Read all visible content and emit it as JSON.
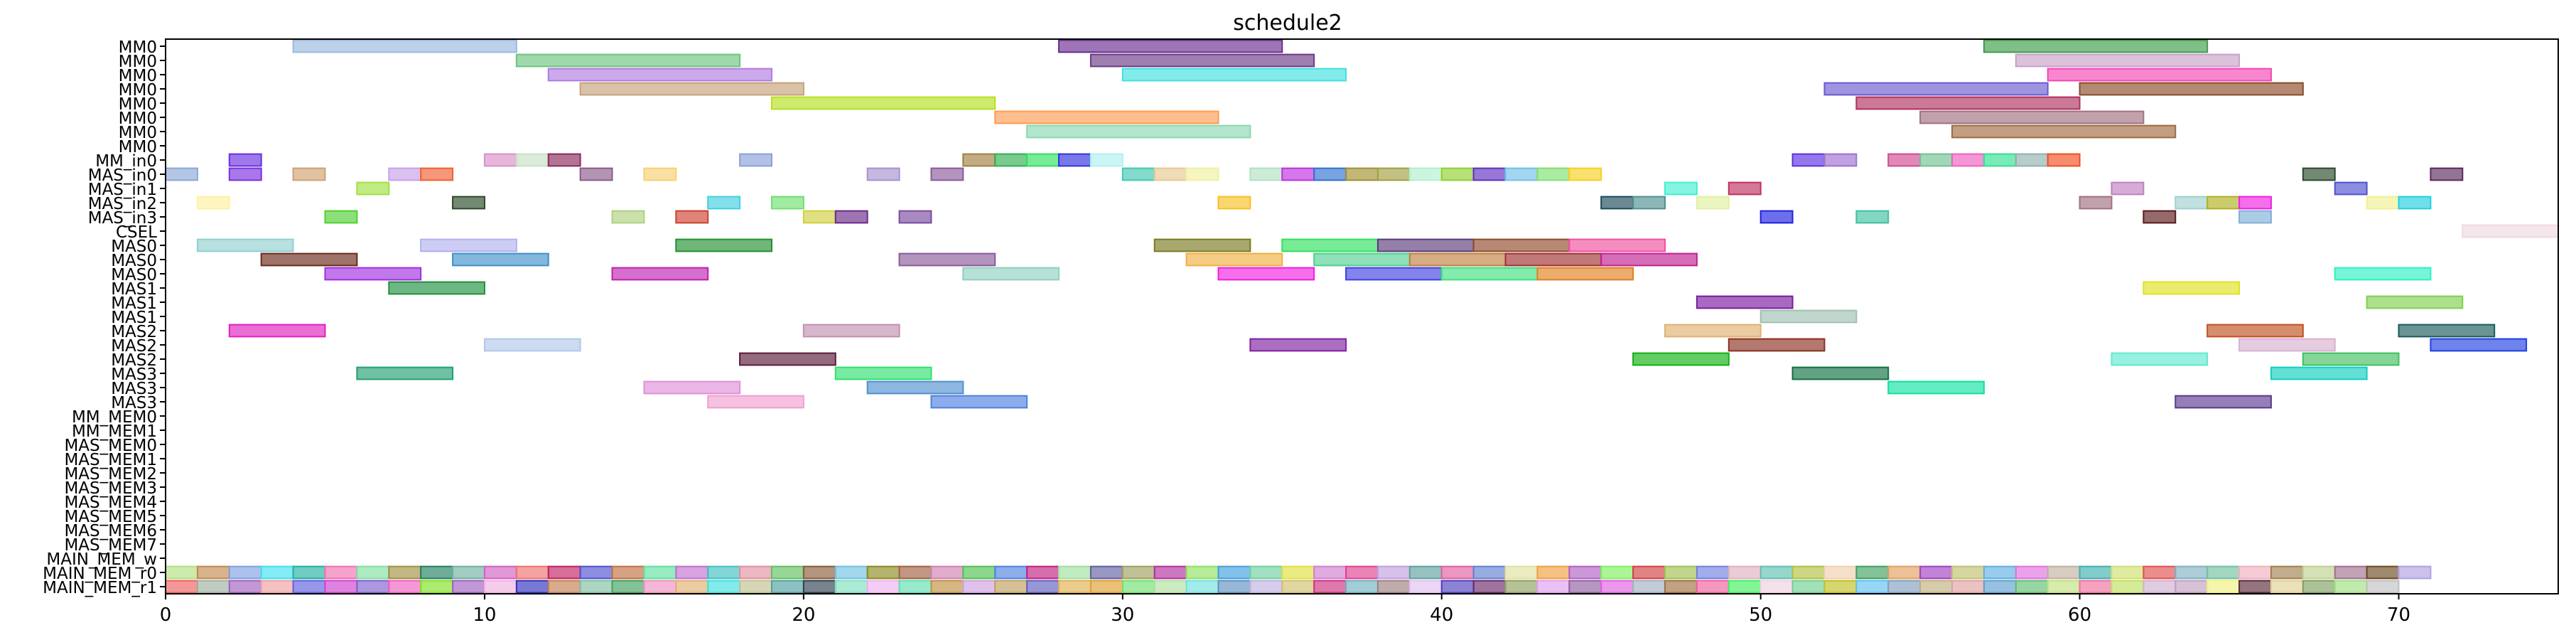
{
  "chart_data": {
    "type": "gantt",
    "title": "schedule2",
    "xlabel": "",
    "ylabel": "",
    "xlim": [
      0,
      75
    ],
    "x_ticks": [
      0,
      10,
      20,
      30,
      40,
      50,
      60,
      70
    ],
    "grid": false,
    "rows": [
      "MM0",
      "MM0",
      "MM0",
      "MM0",
      "MM0",
      "MM0",
      "MM0",
      "MM0",
      "MM_in0",
      "MAS_in0",
      "MAS_in1",
      "MAS_in2",
      "MAS_in3",
      "CSEL",
      "MAS0",
      "MAS0",
      "MAS0",
      "MAS1",
      "MAS1",
      "MAS1",
      "MAS2",
      "MAS2",
      "MAS2",
      "MAS3",
      "MAS3",
      "MAS3",
      "MM_MEM0",
      "MM_MEM1",
      "MAS_MEM0",
      "MAS_MEM1",
      "MAS_MEM2",
      "MAS_MEM3",
      "MAS_MEM4",
      "MAS_MEM5",
      "MAS_MEM6",
      "MAS_MEM7",
      "MAIN_MEM_w",
      "MAIN_MEM_r0",
      "MAIN_MEM_r1"
    ],
    "tasks": [
      {
        "row": 0,
        "start": 4,
        "end": 11,
        "color": "#9ab9e0"
      },
      {
        "row": 0,
        "start": 28,
        "end": 35,
        "color": "#6a2c91"
      },
      {
        "row": 0,
        "start": 57,
        "end": 64,
        "color": "#3e9c4a"
      },
      {
        "row": 1,
        "start": 11,
        "end": 18,
        "color": "#6cc47e"
      },
      {
        "row": 1,
        "start": 29,
        "end": 36,
        "color": "#6b3a85"
      },
      {
        "row": 1,
        "start": 58,
        "end": 65,
        "color": "#c9a0c8"
      },
      {
        "row": 2,
        "start": 12,
        "end": 19,
        "color": "#b07be0"
      },
      {
        "row": 2,
        "start": 30,
        "end": 37,
        "color": "#40e0e0"
      },
      {
        "row": 2,
        "start": 59,
        "end": 66,
        "color": "#f545b5"
      },
      {
        "row": 3,
        "start": 13,
        "end": 20,
        "color": "#c4a27a"
      },
      {
        "row": 3,
        "start": 52,
        "end": 59,
        "color": "#6a5ad0"
      },
      {
        "row": 3,
        "start": 60,
        "end": 67,
        "color": "#8b4a2a"
      },
      {
        "row": 4,
        "start": 19,
        "end": 26,
        "color": "#b6e020"
      },
      {
        "row": 4,
        "start": 53,
        "end": 60,
        "color": "#b03060"
      },
      {
        "row": 5,
        "start": 26,
        "end": 33,
        "color": "#ff9b50"
      },
      {
        "row": 5,
        "start": 55,
        "end": 62,
        "color": "#a07080"
      },
      {
        "row": 6,
        "start": 27,
        "end": 34,
        "color": "#8ad8b0"
      },
      {
        "row": 6,
        "start": 56,
        "end": 63,
        "color": "#a06a40"
      },
      {
        "row": 8,
        "start": 2,
        "end": 3,
        "color": "#6a30e0"
      },
      {
        "row": 8,
        "start": 10,
        "end": 11,
        "color": "#d890c8"
      },
      {
        "row": 8,
        "start": 11,
        "end": 12,
        "color": "#c8e0c8"
      },
      {
        "row": 8,
        "start": 12,
        "end": 13,
        "color": "#8a2a5a"
      },
      {
        "row": 8,
        "start": 18,
        "end": 19,
        "color": "#8aa0d8"
      },
      {
        "row": 8,
        "start": 25,
        "end": 26,
        "color": "#a08040"
      },
      {
        "row": 8,
        "start": 26,
        "end": 27,
        "color": "#30b050"
      },
      {
        "row": 8,
        "start": 27,
        "end": 28,
        "color": "#30e060"
      },
      {
        "row": 8,
        "start": 28,
        "end": 29,
        "color": "#3030e0"
      },
      {
        "row": 8,
        "start": 29,
        "end": 30,
        "color": "#b0f0f0"
      },
      {
        "row": 8,
        "start": 51,
        "end": 52,
        "color": "#5a30e0"
      },
      {
        "row": 8,
        "start": 52,
        "end": 53,
        "color": "#a070d0"
      },
      {
        "row": 8,
        "start": 54,
        "end": 55,
        "color": "#d04a90"
      },
      {
        "row": 8,
        "start": 55,
        "end": 56,
        "color": "#70c090"
      },
      {
        "row": 8,
        "start": 56,
        "end": 57,
        "color": "#f060c0"
      },
      {
        "row": 8,
        "start": 57,
        "end": 58,
        "color": "#30e090"
      },
      {
        "row": 8,
        "start": 58,
        "end": 59,
        "color": "#90b0b0"
      },
      {
        "row": 8,
        "start": 59,
        "end": 60,
        "color": "#f05020"
      },
      {
        "row": 9,
        "start": 0,
        "end": 1,
        "color": "#8aa8d8"
      },
      {
        "row": 9,
        "start": 2,
        "end": 3,
        "color": "#7a30e0"
      },
      {
        "row": 9,
        "start": 4,
        "end": 5,
        "color": "#d0a070"
      },
      {
        "row": 9,
        "start": 7,
        "end": 8,
        "color": "#c8a0e8"
      },
      {
        "row": 9,
        "start": 8,
        "end": 9,
        "color": "#f06030"
      },
      {
        "row": 9,
        "start": 13,
        "end": 14,
        "color": "#8a5a8a"
      },
      {
        "row": 9,
        "start": 15,
        "end": 16,
        "color": "#f8d070"
      },
      {
        "row": 9,
        "start": 22,
        "end": 23,
        "color": "#a890d0"
      },
      {
        "row": 9,
        "start": 24,
        "end": 25,
        "color": "#8a5a9a"
      },
      {
        "row": 9,
        "start": 30,
        "end": 31,
        "color": "#40c8b0"
      },
      {
        "row": 9,
        "start": 31,
        "end": 32,
        "color": "#e8c890"
      },
      {
        "row": 9,
        "start": 32,
        "end": 33,
        "color": "#f0f0a0"
      },
      {
        "row": 9,
        "start": 34,
        "end": 35,
        "color": "#b0e0c0"
      },
      {
        "row": 9,
        "start": 35,
        "end": 36,
        "color": "#c030e0"
      },
      {
        "row": 9,
        "start": 36,
        "end": 37,
        "color": "#3070d0"
      },
      {
        "row": 9,
        "start": 37,
        "end": 38,
        "color": "#a09030"
      },
      {
        "row": 9,
        "start": 38,
        "end": 39,
        "color": "#a0a040"
      },
      {
        "row": 9,
        "start": 39,
        "end": 40,
        "color": "#b0f0d0"
      },
      {
        "row": 9,
        "start": 40,
        "end": 41,
        "color": "#90d030"
      },
      {
        "row": 9,
        "start": 41,
        "end": 42,
        "color": "#6030c0"
      },
      {
        "row": 9,
        "start": 42,
        "end": 43,
        "color": "#70c0e8"
      },
      {
        "row": 9,
        "start": 43,
        "end": 44,
        "color": "#80e070"
      },
      {
        "row": 9,
        "start": 44,
        "end": 45,
        "color": "#f8d020"
      },
      {
        "row": 9,
        "start": 67,
        "end": 68,
        "color": "#2a4a2a"
      },
      {
        "row": 9,
        "start": 71,
        "end": 72,
        "color": "#5a2a5a"
      },
      {
        "row": 10,
        "start": 6,
        "end": 7,
        "color": "#a0e040"
      },
      {
        "row": 10,
        "start": 47,
        "end": 48,
        "color": "#40f0d0"
      },
      {
        "row": 10,
        "start": 49,
        "end": 50,
        "color": "#c03060"
      },
      {
        "row": 10,
        "start": 61,
        "end": 62,
        "color": "#c080c0"
      },
      {
        "row": 10,
        "start": 68,
        "end": 69,
        "color": "#5050d0"
      },
      {
        "row": 11,
        "start": 1,
        "end": 2,
        "color": "#fff0a0"
      },
      {
        "row": 11,
        "start": 9,
        "end": 10,
        "color": "#2a4a2a"
      },
      {
        "row": 11,
        "start": 17,
        "end": 18,
        "color": "#40d0e0"
      },
      {
        "row": 11,
        "start": 19,
        "end": 20,
        "color": "#70e070"
      },
      {
        "row": 11,
        "start": 33,
        "end": 34,
        "color": "#f8c020"
      },
      {
        "row": 11,
        "start": 45,
        "end": 46,
        "color": "#1a4a5a"
      },
      {
        "row": 11,
        "start": 46,
        "end": 47,
        "color": "#509090"
      },
      {
        "row": 11,
        "start": 48,
        "end": 49,
        "color": "#e0f0a0"
      },
      {
        "row": 11,
        "start": 60,
        "end": 61,
        "color": "#a07080"
      },
      {
        "row": 11,
        "start": 63,
        "end": 64,
        "color": "#a0d0d0"
      },
      {
        "row": 11,
        "start": 64,
        "end": 65,
        "color": "#b0b020"
      },
      {
        "row": 11,
        "start": 65,
        "end": 66,
        "color": "#f020e0"
      },
      {
        "row": 11,
        "start": 69,
        "end": 70,
        "color": "#f0f090"
      },
      {
        "row": 11,
        "start": 70,
        "end": 71,
        "color": "#20d0e0"
      },
      {
        "row": 12,
        "start": 5,
        "end": 6,
        "color": "#50d030"
      },
      {
        "row": 12,
        "start": 14,
        "end": 15,
        "color": "#b0d080"
      },
      {
        "row": 12,
        "start": 16,
        "end": 17,
        "color": "#d04030"
      },
      {
        "row": 12,
        "start": 20,
        "end": 21,
        "color": "#d0d040"
      },
      {
        "row": 12,
        "start": 21,
        "end": 22,
        "color": "#6a2a8a"
      },
      {
        "row": 12,
        "start": 23,
        "end": 24,
        "color": "#7a4aa0"
      },
      {
        "row": 12,
        "start": 50,
        "end": 51,
        "color": "#2020e0"
      },
      {
        "row": 12,
        "start": 53,
        "end": 54,
        "color": "#40c0a0"
      },
      {
        "row": 12,
        "start": 62,
        "end": 63,
        "color": "#5a1a1a"
      },
      {
        "row": 12,
        "start": 65,
        "end": 66,
        "color": "#80b0d8"
      },
      {
        "row": 13,
        "start": 72,
        "end": 75,
        "color": "#f0d8e0"
      },
      {
        "row": 14,
        "start": 1,
        "end": 4,
        "color": "#90d0d0"
      },
      {
        "row": 14,
        "start": 8,
        "end": 11,
        "color": "#b0b0f0"
      },
      {
        "row": 14,
        "start": 16,
        "end": 19,
        "color": "#209030"
      },
      {
        "row": 14,
        "start": 31,
        "end": 34,
        "color": "#7a7a20"
      },
      {
        "row": 14,
        "start": 35,
        "end": 38,
        "color": "#30e060"
      },
      {
        "row": 14,
        "start": 38,
        "end": 41,
        "color": "#5a3a7a"
      },
      {
        "row": 14,
        "start": 41,
        "end": 44,
        "color": "#904a2a"
      },
      {
        "row": 14,
        "start": 44,
        "end": 47,
        "color": "#f050a0"
      },
      {
        "row": 15,
        "start": 3,
        "end": 6,
        "color": "#6a2a1a"
      },
      {
        "row": 15,
        "start": 9,
        "end": 12,
        "color": "#4090c8"
      },
      {
        "row": 15,
        "start": 23,
        "end": 26,
        "color": "#8a5a9a"
      },
      {
        "row": 15,
        "start": 32,
        "end": 35,
        "color": "#f0b040"
      },
      {
        "row": 15,
        "start": 36,
        "end": 39,
        "color": "#50d090"
      },
      {
        "row": 15,
        "start": 39,
        "end": 42,
        "color": "#c08040"
      },
      {
        "row": 15,
        "start": 42,
        "end": 45,
        "color": "#a03030"
      },
      {
        "row": 15,
        "start": 45,
        "end": 48,
        "color": "#c02090"
      },
      {
        "row": 16,
        "start": 5,
        "end": 8,
        "color": "#a030e0"
      },
      {
        "row": 16,
        "start": 14,
        "end": 17,
        "color": "#c020b0"
      },
      {
        "row": 16,
        "start": 25,
        "end": 28,
        "color": "#90d0c0"
      },
      {
        "row": 16,
        "start": 33,
        "end": 36,
        "color": "#f020e0"
      },
      {
        "row": 16,
        "start": 37,
        "end": 40,
        "color": "#4040e0"
      },
      {
        "row": 16,
        "start": 40,
        "end": 43,
        "color": "#40e080"
      },
      {
        "row": 16,
        "start": 43,
        "end": 46,
        "color": "#e08020"
      },
      {
        "row": 16,
        "start": 68,
        "end": 71,
        "color": "#30f0c0"
      },
      {
        "row": 17,
        "start": 7,
        "end": 10,
        "color": "#209040"
      },
      {
        "row": 17,
        "start": 62,
        "end": 65,
        "color": "#e0e020"
      },
      {
        "row": 18,
        "start": 48,
        "end": 51,
        "color": "#7a1aa0"
      },
      {
        "row": 18,
        "start": 69,
        "end": 72,
        "color": "#80d050"
      },
      {
        "row": 19,
        "start": 50,
        "end": 53,
        "color": "#a0c0b0"
      },
      {
        "row": 20,
        "start": 2,
        "end": 5,
        "color": "#e020c0"
      },
      {
        "row": 20,
        "start": 20,
        "end": 23,
        "color": "#c090b0"
      },
      {
        "row": 20,
        "start": 47,
        "end": 50,
        "color": "#e0b070"
      },
      {
        "row": 20,
        "start": 64,
        "end": 67,
        "color": "#c05020"
      },
      {
        "row": 20,
        "start": 70,
        "end": 73,
        "color": "#1a5a5a"
      },
      {
        "row": 21,
        "start": 10,
        "end": 13,
        "color": "#b0c8e8"
      },
      {
        "row": 21,
        "start": 34,
        "end": 37,
        "color": "#8020a0"
      },
      {
        "row": 21,
        "start": 49,
        "end": 52,
        "color": "#8a3020"
      },
      {
        "row": 21,
        "start": 65,
        "end": 68,
        "color": "#d8b0d0"
      },
      {
        "row": 21,
        "start": 71,
        "end": 74,
        "color": "#2040e0"
      },
      {
        "row": 22,
        "start": 18,
        "end": 21,
        "color": "#5a1a3a"
      },
      {
        "row": 22,
        "start": 46,
        "end": 49,
        "color": "#10b010"
      },
      {
        "row": 22,
        "start": 61,
        "end": 64,
        "color": "#60e8d0"
      },
      {
        "row": 22,
        "start": 67,
        "end": 70,
        "color": "#40c060"
      },
      {
        "row": 23,
        "start": 6,
        "end": 9,
        "color": "#20a070"
      },
      {
        "row": 23,
        "start": 21,
        "end": 24,
        "color": "#30e070"
      },
      {
        "row": 23,
        "start": 51,
        "end": 54,
        "color": "#107040"
      },
      {
        "row": 23,
        "start": 66,
        "end": 69,
        "color": "#10d0c0"
      },
      {
        "row": 24,
        "start": 15,
        "end": 18,
        "color": "#e090d8"
      },
      {
        "row": 24,
        "start": 22,
        "end": 25,
        "color": "#5090d0"
      },
      {
        "row": 24,
        "start": 54,
        "end": 57,
        "color": "#10e0a0"
      },
      {
        "row": 25,
        "start": 17,
        "end": 20,
        "color": "#f0a0d0"
      },
      {
        "row": 25,
        "start": 24,
        "end": 27,
        "color": "#5080e0"
      },
      {
        "row": 25,
        "start": 63,
        "end": 66,
        "color": "#5a3a90"
      }
    ],
    "mem_rows": [
      {
        "row": 37,
        "colors": [
          "#b0e080",
          "#c08a50",
          "#80a0e0",
          "#40e0f0",
          "#20b0a0",
          "#f070b0",
          "#80e0a0",
          "#a09040",
          "#208060",
          "#70b0a0",
          "#d060c0",
          "#f07070",
          "#c02060",
          "#5050d0",
          "#c07040",
          "#60e0a0",
          "#c070d0",
          "#40c0c0",
          "#e090a0",
          "#60c060",
          "#8a5a3a",
          "#70c0e0",
          "#8a8a20",
          "#a06040",
          "#d080b0",
          "#50c050",
          "#5080e0",
          "#c02080",
          "#a0e0a0",
          "#6060a0",
          "#a0a060",
          "#b030a0",
          "#90e060",
          "#40a0e0",
          "#70d0a0",
          "#e0e040",
          "#d080d0",
          "#e04090",
          "#c0a0e0",
          "#60a0a0",
          "#e060a0",
          "#6080d0",
          "#e0e0a0",
          "#f0a040",
          "#b060c0",
          "#80f060",
          "#d04040",
          "#a0c050",
          "#7080e0",
          "#e0b0c0",
          "#60c0b0",
          "#b0c040",
          "#f0d0b0",
          "#40a060",
          "#e0a060",
          "#a040c0",
          "#c0c070",
          "#60b0e0",
          "#e070e0",
          "#c0b0a0",
          "#40b0b0",
          "#d0e070",
          "#e05050",
          "#80b0c0",
          "#70c0a0",
          "#f0b0c0",
          "#a08050",
          "#c0d090",
          "#a07090",
          "#6a4a20",
          "#b0a0e0"
        ]
      },
      {
        "row": 38,
        "colors": [
          "#f06060",
          "#a0b0a0",
          "#a060c0",
          "#f0a0a0",
          "#6060e0",
          "#d040d0",
          "#8060d0",
          "#f060c0",
          "#80e020",
          "#a060c0",
          "#f0b0e0",
          "#3030c0",
          "#c08050",
          "#80c0a0",
          "#40a060",
          "#f090c0",
          "#e0b070",
          "#40e0e0",
          "#c0c090",
          "#50a0a0",
          "#304050",
          "#80e0c0",
          "#f0b0f0",
          "#60e0b0",
          "#c09040",
          "#d0a0e0",
          "#c0a060",
          "#6060c0",
          "#e0b050",
          "#e0a030",
          "#70e070",
          "#b0e0a0",
          "#70e0e0",
          "#6090c0",
          "#c0b0e0",
          "#d0c070",
          "#d03080",
          "#70b0c0",
          "#a08080",
          "#e0c0f0",
          "#5040c0",
          "#6a2a6a",
          "#90a060",
          "#e0a0f0",
          "#9060a0",
          "#e060e0",
          "#a0b0c0",
          "#a07040",
          "#f060a0",
          "#40f060",
          "#f0d0e0",
          "#70d090",
          "#c0c020",
          "#60c0f0",
          "#80a0c0",
          "#c0b080",
          "#e0a0a0",
          "#60a0d0",
          "#60c070",
          "#c0e080",
          "#f070a0",
          "#c0e060",
          "#d0b0d0",
          "#c0a0c0",
          "#f0f080",
          "#5a2a3a",
          "#e0d090",
          "#80a060",
          "#a0e080",
          "#c0c0c0"
        ]
      }
    ]
  }
}
